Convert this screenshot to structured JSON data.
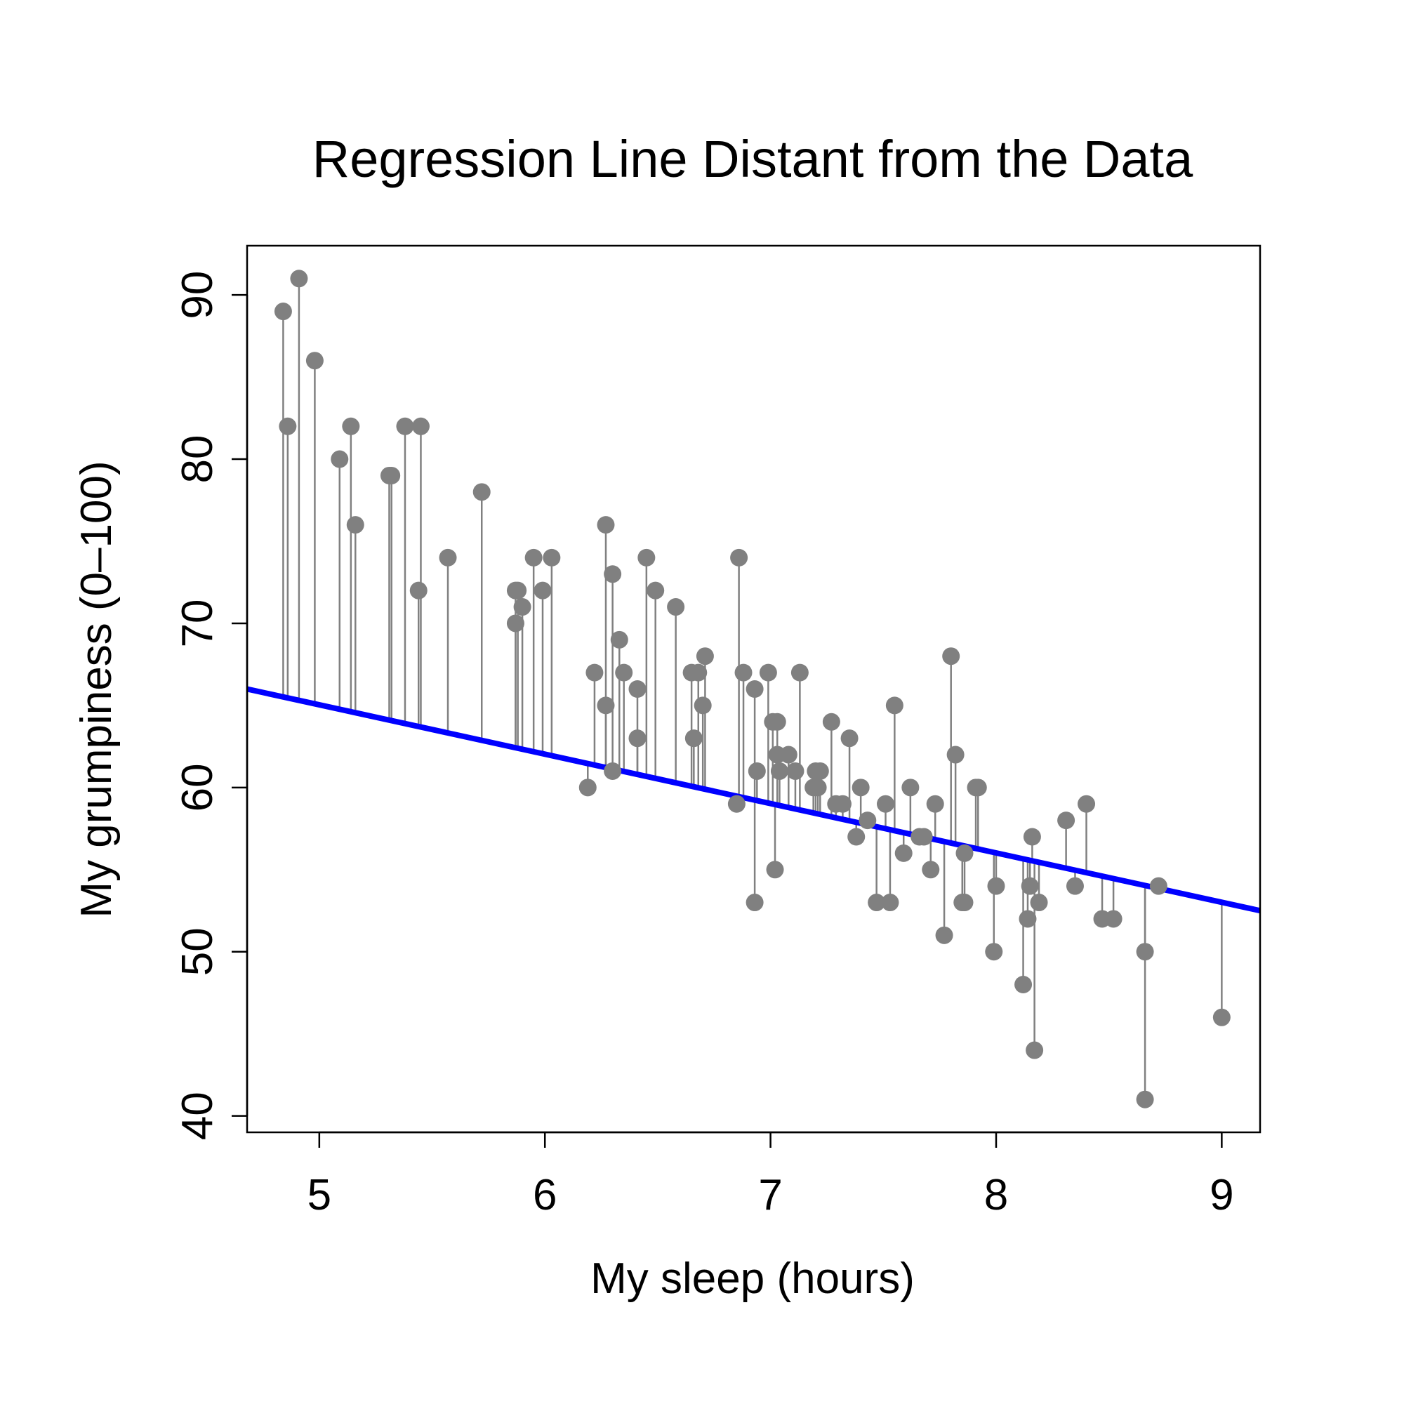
{
  "chart_data": {
    "type": "scatter",
    "title": "Regression Line Distant from the Data",
    "xlabel": "My sleep (hours)",
    "ylabel": "My grumpiness (0–100)",
    "xlim": [
      4.68,
      9.17
    ],
    "ylim": [
      39.0,
      93.0
    ],
    "x_ticks": [
      5,
      6,
      7,
      8,
      9
    ],
    "y_ticks": [
      40,
      50,
      60,
      70,
      80,
      90
    ],
    "grid": false,
    "legend": "none",
    "colors": {
      "points": "#808080",
      "residuals": "#808080",
      "regression_line": "#0000ff"
    },
    "regression_line": {
      "x": [
        4.68,
        9.17
      ],
      "y": [
        66.0,
        52.5
      ]
    },
    "points": [
      {
        "x": 4.84,
        "y": 89
      },
      {
        "x": 4.86,
        "y": 82
      },
      {
        "x": 4.91,
        "y": 91
      },
      {
        "x": 4.98,
        "y": 86
      },
      {
        "x": 5.09,
        "y": 80
      },
      {
        "x": 5.14,
        "y": 82
      },
      {
        "x": 5.16,
        "y": 76
      },
      {
        "x": 5.31,
        "y": 79
      },
      {
        "x": 5.32,
        "y": 79
      },
      {
        "x": 5.38,
        "y": 82
      },
      {
        "x": 5.44,
        "y": 72
      },
      {
        "x": 5.45,
        "y": 82
      },
      {
        "x": 5.57,
        "y": 74
      },
      {
        "x": 5.72,
        "y": 78
      },
      {
        "x": 5.87,
        "y": 72
      },
      {
        "x": 5.87,
        "y": 70
      },
      {
        "x": 5.88,
        "y": 72
      },
      {
        "x": 5.9,
        "y": 71
      },
      {
        "x": 5.95,
        "y": 74
      },
      {
        "x": 5.99,
        "y": 72
      },
      {
        "x": 6.03,
        "y": 74
      },
      {
        "x": 6.19,
        "y": 60
      },
      {
        "x": 6.22,
        "y": 67
      },
      {
        "x": 6.27,
        "y": 76
      },
      {
        "x": 6.27,
        "y": 65
      },
      {
        "x": 6.3,
        "y": 73
      },
      {
        "x": 6.3,
        "y": 61
      },
      {
        "x": 6.33,
        "y": 69
      },
      {
        "x": 6.35,
        "y": 67
      },
      {
        "x": 6.41,
        "y": 66
      },
      {
        "x": 6.41,
        "y": 63
      },
      {
        "x": 6.45,
        "y": 74
      },
      {
        "x": 6.49,
        "y": 72
      },
      {
        "x": 6.58,
        "y": 71
      },
      {
        "x": 6.65,
        "y": 67
      },
      {
        "x": 6.66,
        "y": 63
      },
      {
        "x": 6.68,
        "y": 67
      },
      {
        "x": 6.7,
        "y": 65
      },
      {
        "x": 6.71,
        "y": 68
      },
      {
        "x": 6.85,
        "y": 59
      },
      {
        "x": 6.86,
        "y": 74
      },
      {
        "x": 6.88,
        "y": 67
      },
      {
        "x": 6.93,
        "y": 66
      },
      {
        "x": 6.93,
        "y": 53
      },
      {
        "x": 6.94,
        "y": 61
      },
      {
        "x": 6.99,
        "y": 67
      },
      {
        "x": 7.01,
        "y": 64
      },
      {
        "x": 7.02,
        "y": 55
      },
      {
        "x": 7.03,
        "y": 64
      },
      {
        "x": 7.03,
        "y": 62
      },
      {
        "x": 7.04,
        "y": 61
      },
      {
        "x": 7.08,
        "y": 62
      },
      {
        "x": 7.11,
        "y": 61
      },
      {
        "x": 7.13,
        "y": 67
      },
      {
        "x": 7.19,
        "y": 60
      },
      {
        "x": 7.2,
        "y": 61
      },
      {
        "x": 7.21,
        "y": 60
      },
      {
        "x": 7.22,
        "y": 61
      },
      {
        "x": 7.27,
        "y": 64
      },
      {
        "x": 7.29,
        "y": 59
      },
      {
        "x": 7.32,
        "y": 59
      },
      {
        "x": 7.35,
        "y": 63
      },
      {
        "x": 7.38,
        "y": 57
      },
      {
        "x": 7.4,
        "y": 60
      },
      {
        "x": 7.43,
        "y": 58
      },
      {
        "x": 7.47,
        "y": 53
      },
      {
        "x": 7.51,
        "y": 59
      },
      {
        "x": 7.53,
        "y": 53
      },
      {
        "x": 7.55,
        "y": 65
      },
      {
        "x": 7.59,
        "y": 56
      },
      {
        "x": 7.62,
        "y": 60
      },
      {
        "x": 7.66,
        "y": 57
      },
      {
        "x": 7.68,
        "y": 57
      },
      {
        "x": 7.71,
        "y": 55
      },
      {
        "x": 7.73,
        "y": 59
      },
      {
        "x": 7.77,
        "y": 51
      },
      {
        "x": 7.8,
        "y": 68
      },
      {
        "x": 7.82,
        "y": 62
      },
      {
        "x": 7.85,
        "y": 53
      },
      {
        "x": 7.86,
        "y": 56
      },
      {
        "x": 7.86,
        "y": 53
      },
      {
        "x": 7.91,
        "y": 60
      },
      {
        "x": 7.92,
        "y": 60
      },
      {
        "x": 7.99,
        "y": 50
      },
      {
        "x": 8.0,
        "y": 54
      },
      {
        "x": 8.12,
        "y": 48
      },
      {
        "x": 8.14,
        "y": 52
      },
      {
        "x": 8.15,
        "y": 54
      },
      {
        "x": 8.16,
        "y": 57
      },
      {
        "x": 8.17,
        "y": 44
      },
      {
        "x": 8.19,
        "y": 53
      },
      {
        "x": 8.31,
        "y": 58
      },
      {
        "x": 8.35,
        "y": 54
      },
      {
        "x": 8.4,
        "y": 59
      },
      {
        "x": 8.47,
        "y": 52
      },
      {
        "x": 8.52,
        "y": 52
      },
      {
        "x": 8.66,
        "y": 50
      },
      {
        "x": 8.66,
        "y": 41
      },
      {
        "x": 8.72,
        "y": 54
      },
      {
        "x": 9.0,
        "y": 46
      }
    ]
  }
}
